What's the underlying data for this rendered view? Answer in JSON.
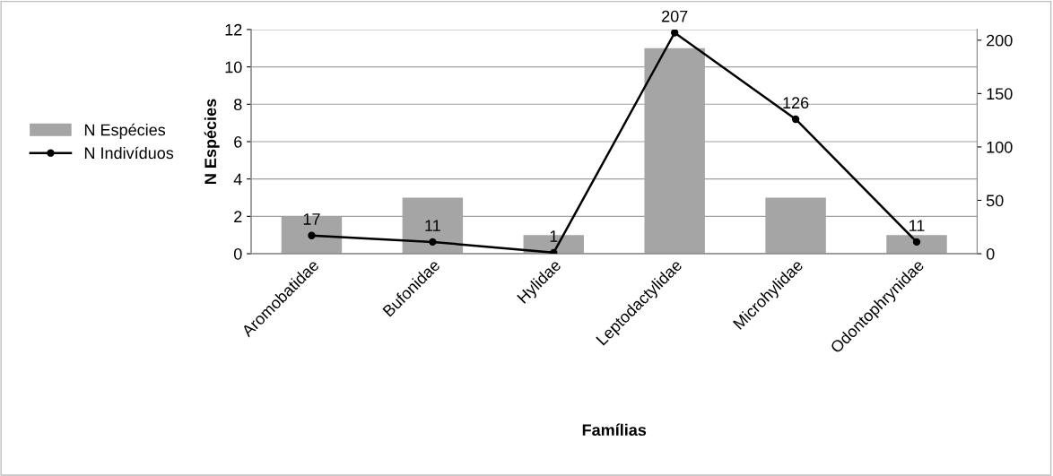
{
  "chart_data": {
    "type": "bar",
    "xlabel": "Famílias",
    "ylabel": "N Espécies",
    "categories": [
      "Aromobatidae",
      "Bufonidae",
      "Hylidae",
      "Leptodactylidae",
      "Microhylidae",
      "Odontophrynidae"
    ],
    "series": [
      {
        "name": "N Espécies",
        "color": "#a5a5a5",
        "values": [
          2,
          3,
          1,
          11,
          3,
          1
        ]
      },
      {
        "name": "N Indivíduos",
        "type": "line",
        "axis": "y2",
        "color": "#000000",
        "marker": "circle",
        "values": [
          17,
          11,
          1,
          207,
          126,
          11
        ],
        "value_labels": [
          "17",
          "11",
          "1",
          "207",
          "126",
          "11"
        ]
      }
    ],
    "ylim": [
      0,
      12
    ],
    "yticks": [
      0,
      2,
      4,
      6,
      8,
      10,
      12
    ],
    "y2lim": [
      0,
      210
    ],
    "y2ticks": [
      0,
      50,
      100,
      150,
      200
    ],
    "grid": "y",
    "legend": "left"
  }
}
